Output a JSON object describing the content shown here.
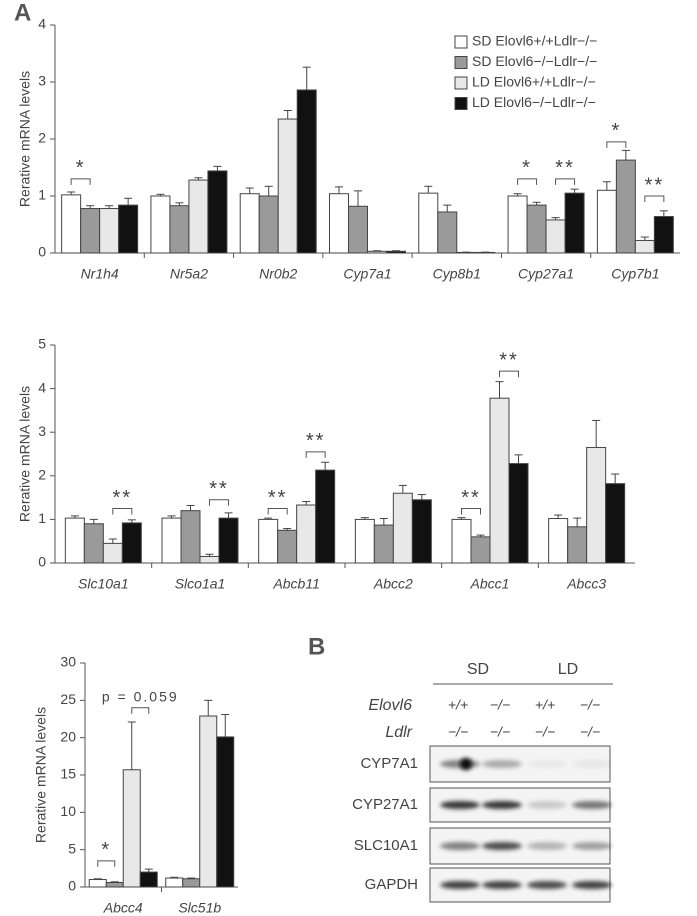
{
  "panel_labels": [
    "A",
    "B"
  ],
  "chart_data": [
    {
      "type": "bar",
      "ylabel": "Rerative mRNA levels",
      "categories": [
        "Nr1h4",
        "Nr5a2",
        "Nr0b2",
        "Cyp7a1",
        "Cyp8b1",
        "Cyp27a1",
        "Cyp7b1"
      ],
      "ylim": [
        0,
        4
      ],
      "yticks": [
        0,
        1,
        2,
        3,
        4
      ],
      "grid": false,
      "legend": "top-right",
      "series": [
        {
          "name": "SD Elovl6+/+Ldlr−/−",
          "color": "#ffffff",
          "values": [
            1.02,
            1.0,
            1.04,
            1.04,
            1.05,
            1.0,
            1.1
          ],
          "errors": [
            0.05,
            0.03,
            0.1,
            0.12,
            0.12,
            0.04,
            0.15
          ]
        },
        {
          "name": "SD Elovl6−/−Ldlr−/−",
          "color": "#9a9a9a",
          "values": [
            0.78,
            0.83,
            1.0,
            0.82,
            0.72,
            0.84,
            1.63
          ],
          "errors": [
            0.05,
            0.05,
            0.17,
            0.27,
            0.12,
            0.05,
            0.17
          ]
        },
        {
          "name": "LD Elovl6+/+Ldlr−/−",
          "color": "#e8e8e8",
          "values": [
            0.78,
            1.28,
            2.35,
            0.03,
            0.01,
            0.58,
            0.22
          ],
          "errors": [
            0.05,
            0.04,
            0.15,
            0.01,
            0.005,
            0.04,
            0.06
          ]
        },
        {
          "name": "LD Elovl6−/−Ldlr−/−",
          "color": "#111111",
          "values": [
            0.84,
            1.44,
            2.86,
            0.03,
            0.01,
            1.05,
            0.64
          ],
          "errors": [
            0.12,
            0.08,
            0.4,
            0.01,
            0.005,
            0.07,
            0.1
          ]
        }
      ],
      "annotations": [
        "*",
        "*",
        "**",
        "*",
        "**"
      ]
    },
    {
      "type": "bar",
      "ylabel": "Rerative mRNA levels",
      "categories": [
        "Slc10a1",
        "Slco1a1",
        "Abcb11",
        "Abcc2",
        "Abcc1",
        "Abcc3"
      ],
      "ylim": [
        0,
        5
      ],
      "yticks": [
        0,
        1,
        2,
        3,
        4,
        5
      ],
      "grid": false,
      "series": [
        {
          "color": "#ffffff",
          "values": [
            1.03,
            1.03,
            1.0,
            1.0,
            1.0,
            1.02
          ],
          "errors": [
            0.05,
            0.05,
            0.03,
            0.04,
            0.04,
            0.08
          ]
        },
        {
          "color": "#9a9a9a",
          "values": [
            0.9,
            1.2,
            0.75,
            0.87,
            0.6,
            0.83
          ],
          "errors": [
            0.1,
            0.12,
            0.04,
            0.15,
            0.04,
            0.2
          ]
        },
        {
          "color": "#e8e8e8",
          "values": [
            0.45,
            0.15,
            1.33,
            1.6,
            3.78,
            2.65
          ],
          "errors": [
            0.1,
            0.05,
            0.08,
            0.18,
            0.38,
            0.62
          ]
        },
        {
          "color": "#111111",
          "values": [
            0.92,
            1.03,
            2.13,
            1.45,
            2.28,
            1.82
          ],
          "errors": [
            0.07,
            0.12,
            0.18,
            0.12,
            0.2,
            0.22
          ]
        }
      ],
      "annotations": [
        "**",
        "**",
        "**",
        "**",
        "**",
        "**"
      ]
    },
    {
      "type": "bar",
      "ylabel": "Rerative mRNA levels",
      "categories": [
        "Abcc4",
        "Slc51b"
      ],
      "ylim": [
        0,
        30
      ],
      "yticks": [
        0,
        5,
        10,
        15,
        20,
        25,
        30
      ],
      "grid": false,
      "series": [
        {
          "color": "#ffffff",
          "values": [
            1.0,
            1.2
          ],
          "errors": [
            0.1,
            0.1
          ]
        },
        {
          "color": "#9a9a9a",
          "values": [
            0.6,
            1.1
          ],
          "errors": [
            0.1,
            0.1
          ]
        },
        {
          "color": "#e8e8e8",
          "values": [
            15.7,
            22.9
          ],
          "errors": [
            6.4,
            2.1
          ]
        },
        {
          "color": "#111111",
          "values": [
            2.0,
            20.1
          ],
          "errors": [
            0.4,
            3.0
          ]
        }
      ],
      "annotations": [
        "*",
        "p = 0.059"
      ]
    }
  ],
  "blot": {
    "groups": [
      "SD",
      "LD"
    ],
    "rows": [
      {
        "label": "Elovl6",
        "values": [
          "+/+",
          "−/−",
          "+/+",
          "−/−"
        ]
      },
      {
        "label": "Ldlr",
        "values": [
          "−/−",
          "−/−",
          "−/−",
          "−/−"
        ]
      }
    ],
    "proteins": [
      "CYP7A1",
      "CYP27A1",
      "SLC10A1",
      "GAPDH"
    ]
  }
}
